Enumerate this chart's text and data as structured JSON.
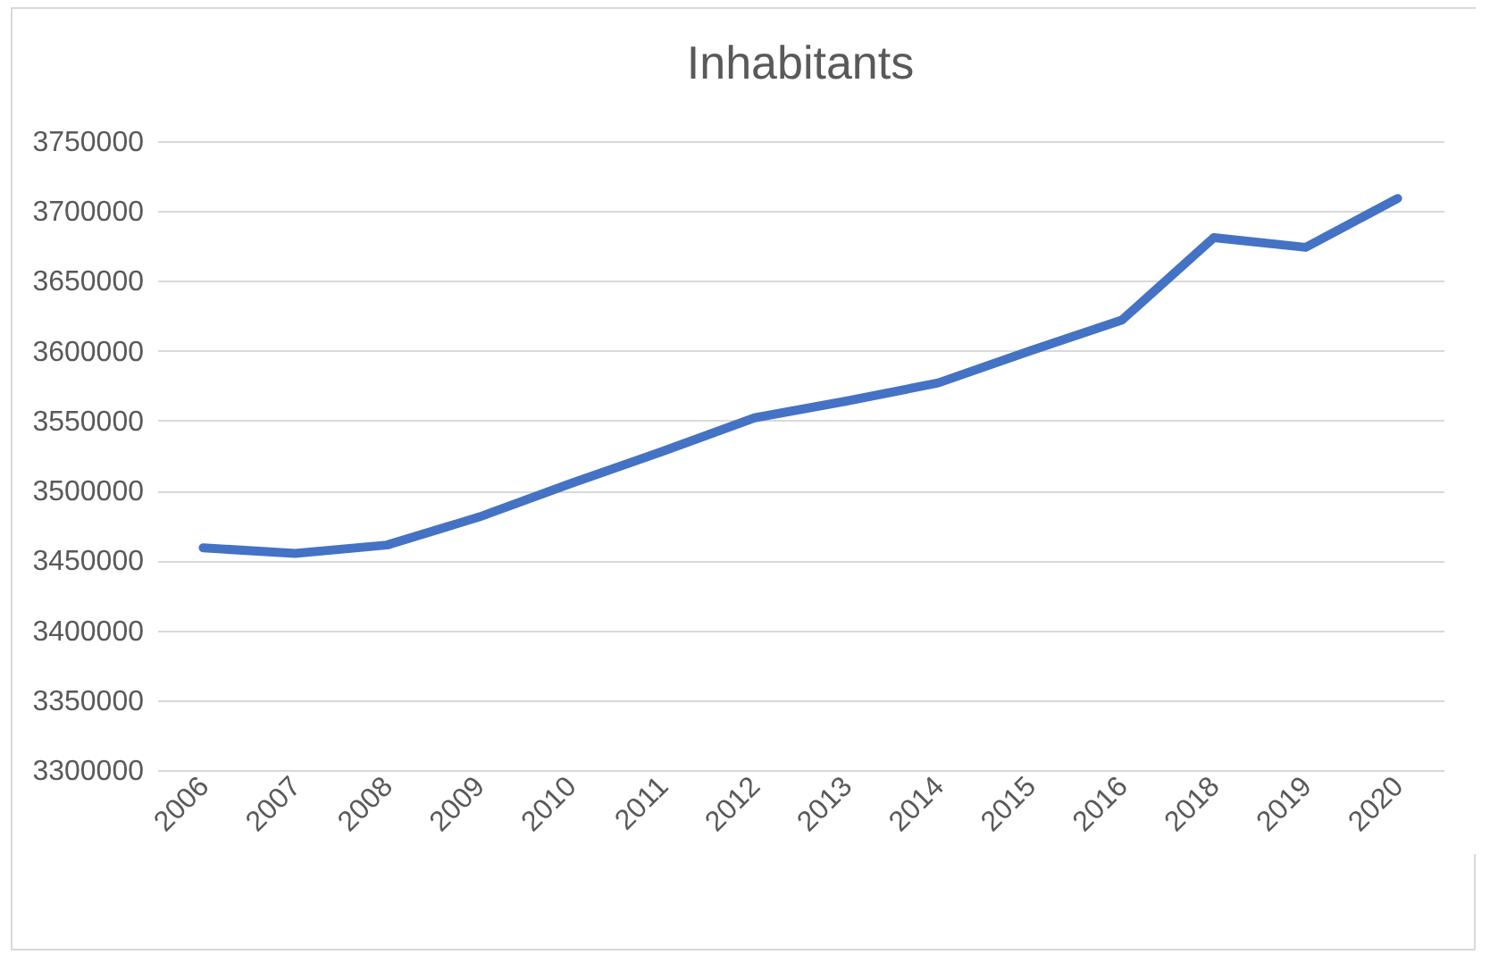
{
  "chart_data": {
    "type": "line",
    "title": "Inhabitants",
    "categories": [
      "2006",
      "2007",
      "2008",
      "2009",
      "2010",
      "2011",
      "2012",
      "2013",
      "2014",
      "2015",
      "2016",
      "2018",
      "2019",
      "2020"
    ],
    "series": [
      {
        "color": "#4472c4",
        "values": [
          3459000,
          3455000,
          3461000,
          3481000,
          3505000,
          3528000,
          3552000,
          3564000,
          3577000,
          3600000,
          3622000,
          3681000,
          3674000,
          3709000
        ]
      }
    ],
    "ylim": [
      3300000,
      3750000
    ],
    "yticks": [
      3300000,
      3350000,
      3400000,
      3450000,
      3500000,
      3550000,
      3600000,
      3650000,
      3700000,
      3750000
    ],
    "grid": "y",
    "legend": false,
    "marker": "none",
    "line_style": "solid"
  }
}
